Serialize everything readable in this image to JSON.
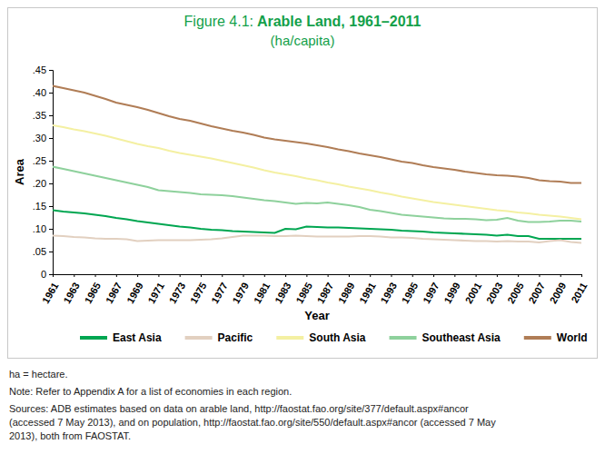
{
  "chart_data": {
    "type": "line",
    "title": "Figure 4.1: Arable Land, 1961–2011",
    "subtitle": "(ha/capita)",
    "x_label": "Year",
    "y_label": "Area",
    "x": [
      1961,
      1962,
      1963,
      1964,
      1965,
      1966,
      1967,
      1968,
      1969,
      1970,
      1971,
      1972,
      1973,
      1974,
      1975,
      1976,
      1977,
      1978,
      1979,
      1980,
      1981,
      1982,
      1983,
      1984,
      1985,
      1986,
      1987,
      1988,
      1989,
      1990,
      1991,
      1992,
      1993,
      1994,
      1995,
      1996,
      1997,
      1998,
      1999,
      2000,
      2001,
      2002,
      2003,
      2004,
      2005,
      2006,
      2007,
      2008,
      2009,
      2010,
      2011
    ],
    "xlim": [
      1961,
      2011
    ],
    "xticks": [
      1961,
      1963,
      1965,
      1967,
      1969,
      1971,
      1973,
      1975,
      1977,
      1979,
      1981,
      1983,
      1985,
      1987,
      1989,
      1991,
      1993,
      1995,
      1997,
      1999,
      2001,
      2003,
      2005,
      2007,
      2009,
      2011
    ],
    "ylim": [
      0,
      0.45
    ],
    "yticks": [
      0,
      {
        "value": 0.05,
        "label": ".05"
      },
      {
        "value": 0.1,
        "label": ".10"
      },
      {
        "value": 0.15,
        "label": ".15"
      },
      {
        "value": 0.2,
        "label": ".20"
      },
      {
        "value": 0.25,
        "label": ".25"
      },
      {
        "value": 0.3,
        "label": ".30"
      },
      {
        "value": 0.35,
        "label": ".35"
      },
      {
        "value": 0.4,
        "label": ".40"
      },
      {
        "value": 0.45,
        "label": ".45"
      }
    ],
    "grid": false,
    "legend": "bottom",
    "series": [
      {
        "name": "East Asia",
        "color": "#00a651",
        "values": [
          0.141,
          0.138,
          0.136,
          0.134,
          0.131,
          0.128,
          0.124,
          0.121,
          0.117,
          0.114,
          0.111,
          0.108,
          0.105,
          0.103,
          0.1,
          0.098,
          0.097,
          0.095,
          0.094,
          0.093,
          0.092,
          0.091,
          0.1,
          0.099,
          0.105,
          0.104,
          0.103,
          0.103,
          0.102,
          0.101,
          0.1,
          0.099,
          0.098,
          0.096,
          0.095,
          0.094,
          0.092,
          0.091,
          0.09,
          0.089,
          0.088,
          0.087,
          0.085,
          0.087,
          0.084,
          0.084,
          0.078,
          0.078,
          0.078,
          0.078,
          0.078
        ]
      },
      {
        "name": "Pacific",
        "color": "#e2d0c0",
        "values": [
          0.085,
          0.084,
          0.082,
          0.081,
          0.079,
          0.078,
          0.078,
          0.077,
          0.073,
          0.074,
          0.075,
          0.075,
          0.075,
          0.075,
          0.076,
          0.077,
          0.079,
          0.082,
          0.085,
          0.085,
          0.085,
          0.084,
          0.084,
          0.085,
          0.084,
          0.083,
          0.083,
          0.083,
          0.083,
          0.084,
          0.084,
          0.083,
          0.081,
          0.081,
          0.08,
          0.078,
          0.077,
          0.076,
          0.075,
          0.074,
          0.073,
          0.073,
          0.072,
          0.073,
          0.072,
          0.072,
          0.07,
          0.073,
          0.075,
          0.071,
          0.069
        ]
      },
      {
        "name": "South Asia",
        "color": "#f4f0a2",
        "values": [
          0.328,
          0.324,
          0.319,
          0.315,
          0.31,
          0.305,
          0.299,
          0.293,
          0.287,
          0.282,
          0.278,
          0.272,
          0.267,
          0.263,
          0.259,
          0.255,
          0.25,
          0.245,
          0.24,
          0.235,
          0.229,
          0.224,
          0.22,
          0.216,
          0.211,
          0.207,
          0.202,
          0.198,
          0.193,
          0.189,
          0.185,
          0.18,
          0.176,
          0.171,
          0.167,
          0.163,
          0.159,
          0.156,
          0.153,
          0.15,
          0.147,
          0.144,
          0.141,
          0.139,
          0.136,
          0.134,
          0.131,
          0.129,
          0.127,
          0.124,
          0.121
        ]
      },
      {
        "name": "Southeast Asia",
        "color": "#8ed19c",
        "values": [
          0.237,
          0.232,
          0.227,
          0.222,
          0.217,
          0.212,
          0.207,
          0.202,
          0.197,
          0.192,
          0.185,
          0.183,
          0.181,
          0.179,
          0.176,
          0.175,
          0.174,
          0.172,
          0.169,
          0.166,
          0.163,
          0.161,
          0.158,
          0.155,
          0.157,
          0.156,
          0.158,
          0.155,
          0.152,
          0.148,
          0.142,
          0.139,
          0.135,
          0.131,
          0.129,
          0.127,
          0.125,
          0.123,
          0.122,
          0.122,
          0.121,
          0.119,
          0.12,
          0.124,
          0.118,
          0.115,
          0.115,
          0.116,
          0.118,
          0.118,
          0.116
        ]
      },
      {
        "name": "World",
        "color": "#b07d56",
        "values": [
          0.415,
          0.41,
          0.405,
          0.4,
          0.393,
          0.386,
          0.378,
          0.373,
          0.368,
          0.362,
          0.355,
          0.348,
          0.342,
          0.338,
          0.332,
          0.326,
          0.321,
          0.316,
          0.312,
          0.307,
          0.301,
          0.297,
          0.294,
          0.291,
          0.288,
          0.284,
          0.28,
          0.275,
          0.271,
          0.266,
          0.262,
          0.258,
          0.253,
          0.248,
          0.245,
          0.24,
          0.236,
          0.233,
          0.23,
          0.226,
          0.223,
          0.22,
          0.218,
          0.217,
          0.215,
          0.212,
          0.207,
          0.205,
          0.204,
          0.201,
          0.201
        ]
      }
    ],
    "notes": [
      "ha = hectare.",
      "Note: Refer to Appendix A for a list of economies in each region.",
      "Sources: ADB estimates based on data on arable land, http://faostat.fao.org/site/377/default.aspx#ancor",
      "(accessed 7 May 2013), and on population, http://faostat.fao.org/site/550/default.aspx#ancor (accessed 7 May",
      "2013), both from FAOSTAT."
    ]
  }
}
